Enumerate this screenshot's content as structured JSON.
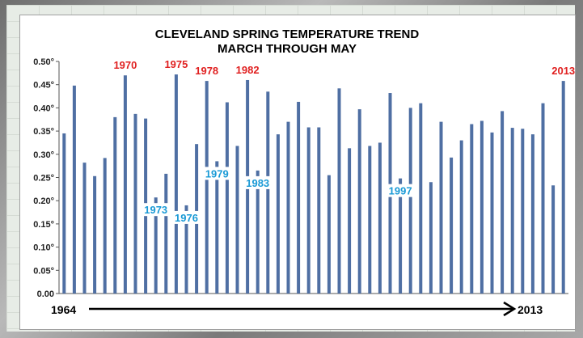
{
  "chart_data": {
    "type": "bar",
    "title": "CLEVELAND SPRING TEMPERATURE TREND",
    "subtitle": "MARCH THROUGH MAY",
    "xlabel": "",
    "ylabel": "",
    "ylim": [
      0,
      0.5
    ],
    "y_ticks": [
      "0.00",
      "0.05°",
      "0.10°",
      "0.15°",
      "0.20°",
      "0.25°",
      "0.30°",
      "0.35°",
      "0.40°",
      "0.45°",
      "0.50°"
    ],
    "grid": false,
    "bar_color": "#4f6fa3",
    "x": [
      1964,
      1965,
      1966,
      1967,
      1968,
      1969,
      1970,
      1971,
      1972,
      1973,
      1974,
      1975,
      1976,
      1977,
      1978,
      1979,
      1980,
      1981,
      1982,
      1983,
      1984,
      1985,
      1986,
      1987,
      1988,
      1989,
      1990,
      1991,
      1992,
      1993,
      1994,
      1995,
      1996,
      1997,
      1998,
      1999,
      2000,
      2001,
      2002,
      2003,
      2004,
      2005,
      2006,
      2007,
      2008,
      2009,
      2010,
      2011,
      2012,
      2013
    ],
    "values": [
      0.345,
      0.448,
      0.282,
      0.253,
      0.292,
      0.38,
      0.47,
      0.387,
      0.377,
      0.207,
      0.258,
      0.472,
      0.19,
      0.322,
      0.458,
      0.285,
      0.412,
      0.318,
      0.46,
      0.265,
      0.435,
      0.343,
      0.37,
      0.413,
      0.358,
      0.358,
      0.255,
      0.442,
      0.313,
      0.397,
      0.318,
      0.325,
      0.432,
      0.248,
      0.4,
      0.41,
      0.24,
      0.37,
      0.293,
      0.33,
      0.365,
      0.372,
      0.347,
      0.393,
      0.357,
      0.355,
      0.343,
      0.41,
      0.233,
      0.458
    ],
    "annotations": [
      {
        "label": "1970",
        "year": 1970,
        "color": "#e02020"
      },
      {
        "label": "1975",
        "year": 1975,
        "color": "#e02020"
      },
      {
        "label": "1978",
        "year": 1978,
        "color": "#e02020"
      },
      {
        "label": "1982",
        "year": 1982,
        "color": "#e02020"
      },
      {
        "label": "2013",
        "year": 2013,
        "color": "#e02020"
      },
      {
        "label": "1973",
        "year": 1973,
        "color": "#1a9ad6"
      },
      {
        "label": "1976",
        "year": 1976,
        "color": "#1a9ad6"
      },
      {
        "label": "1979",
        "year": 1979,
        "color": "#1a9ad6"
      },
      {
        "label": "1983",
        "year": 1983,
        "color": "#1a9ad6"
      },
      {
        "label": "1997",
        "year": 1997,
        "color": "#1a9ad6"
      }
    ],
    "range_start_label": "1964",
    "range_end_label": "2013"
  }
}
